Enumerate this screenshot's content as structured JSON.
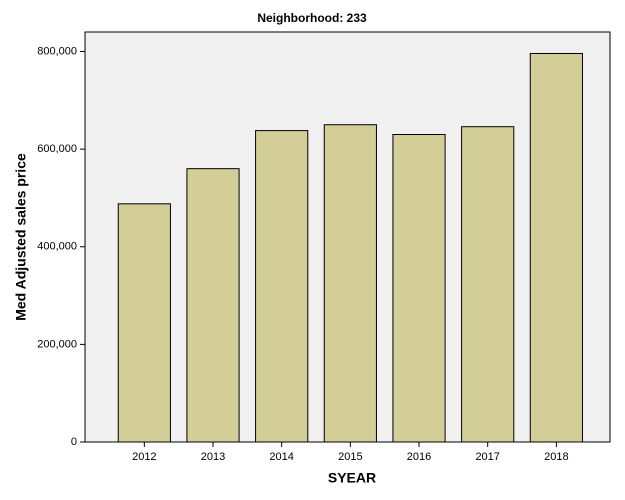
{
  "chart_data": {
    "type": "bar",
    "title": "Neighborhood: 233",
    "x_label": "SYEAR",
    "y_label": "Med Adjusted sales price",
    "categories": [
      "2012",
      "2013",
      "2014",
      "2015",
      "2016",
      "2017",
      "2018"
    ],
    "values": [
      488000,
      560000,
      638000,
      650000,
      630000,
      646000,
      796000
    ],
    "color": "#d3ce98",
    "ylim": [
      0,
      840000
    ],
    "yticks": [
      0,
      {
        "value": 200000,
        "label": "200,000"
      },
      {
        "value": 400000,
        "label": "400,000"
      },
      {
        "value": 600000,
        "label": "600,000"
      },
      {
        "value": 800000,
        "label": "800,000"
      }
    ],
    "grid": false
  }
}
